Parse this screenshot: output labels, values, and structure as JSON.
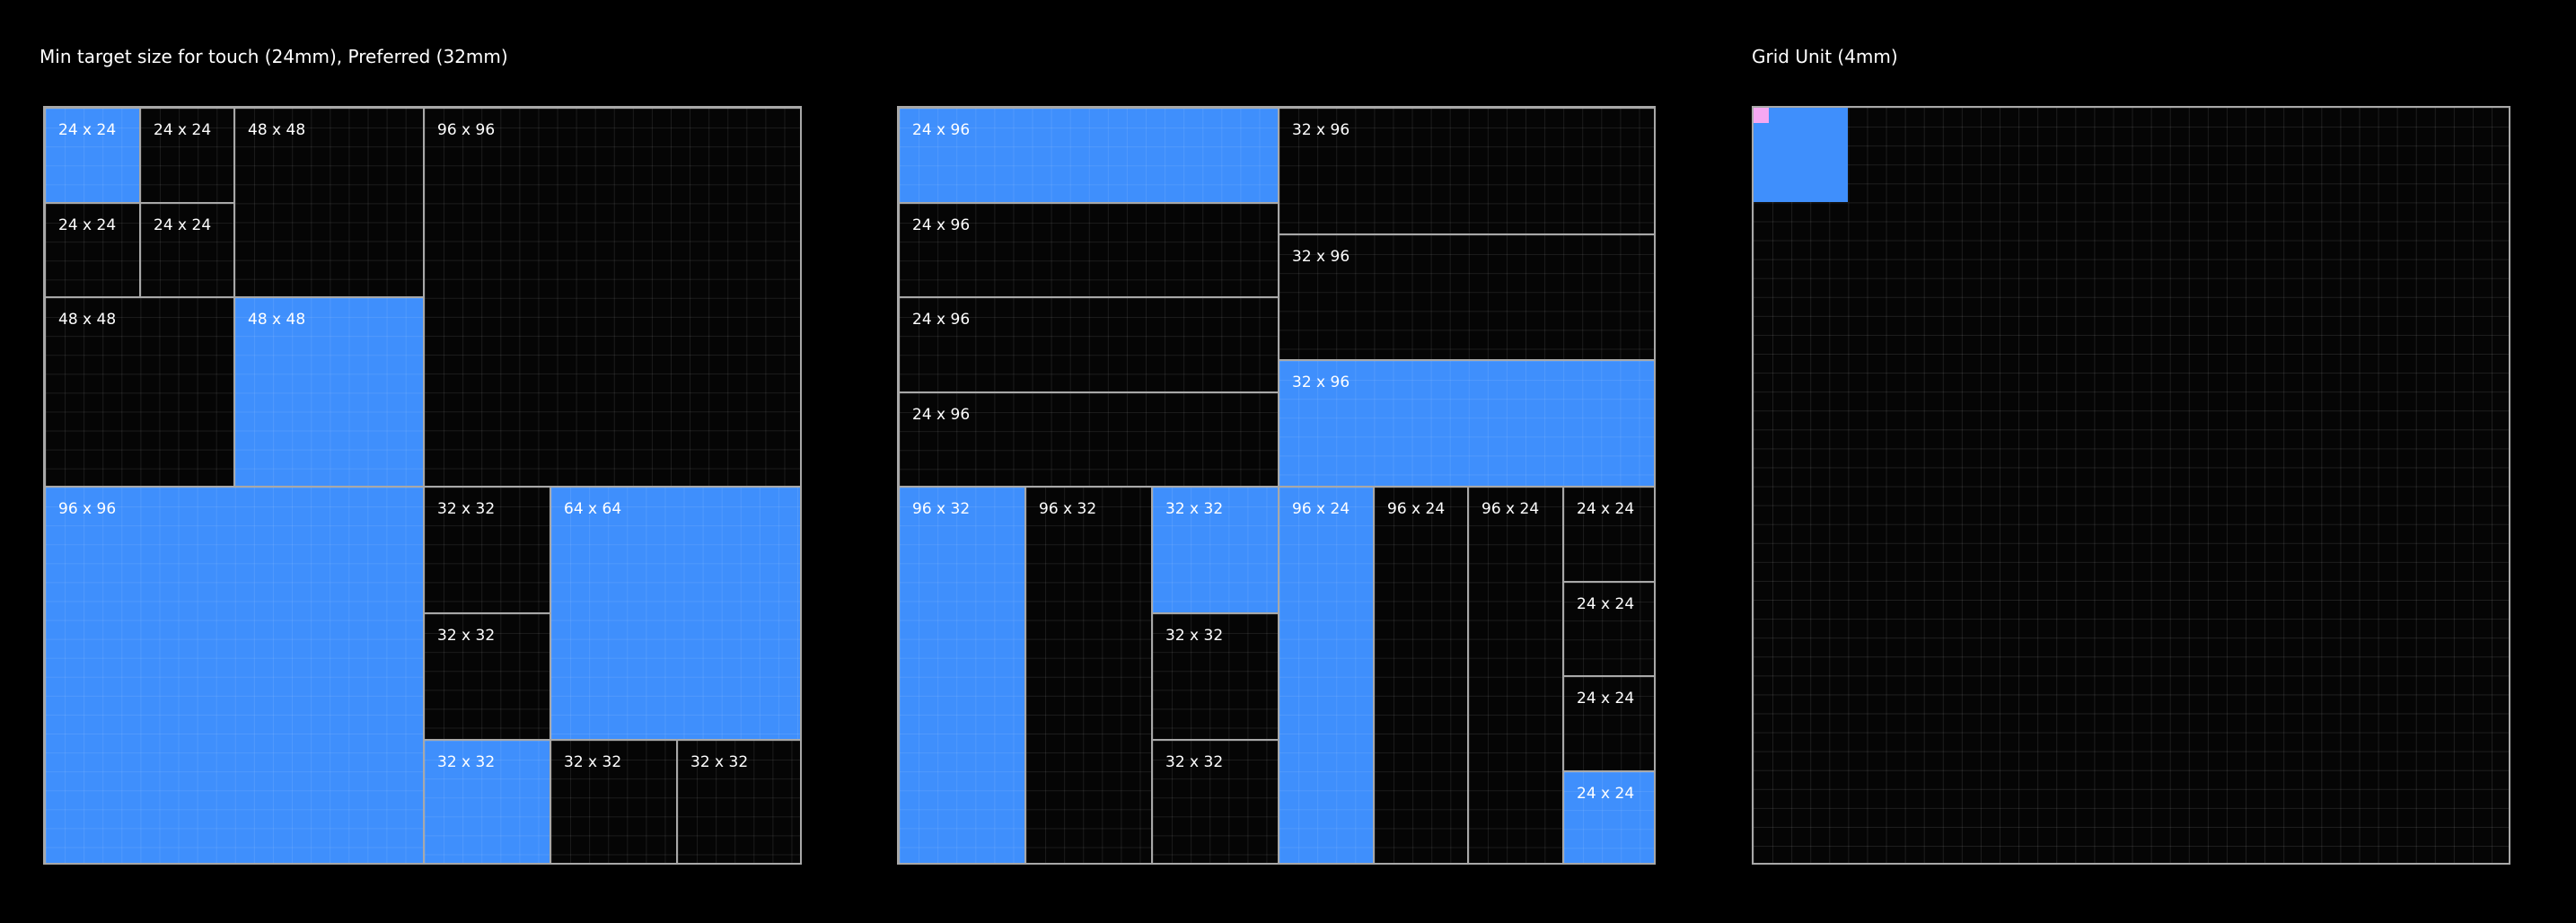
{
  "headings": {
    "left": "Min target size for touch (24mm), Preferred (32mm)",
    "right": "Grid Unit (4mm)"
  },
  "colors": {
    "background": "#000000",
    "blue": "#3f8ffc",
    "pink": "#f5a8f2",
    "border": "#a8a8a8"
  },
  "panel1": {
    "cells": [
      {
        "label": "24 x 24",
        "fill": "blue"
      },
      {
        "label": "24 x 24",
        "fill": "dark"
      },
      {
        "label": "48 x 48",
        "fill": "dark"
      },
      {
        "label": "96 x 96",
        "fill": "dark"
      },
      {
        "label": "24 x 24",
        "fill": "dark"
      },
      {
        "label": "24 x 24",
        "fill": "dark"
      },
      {
        "label": "48 x 48",
        "fill": "dark"
      },
      {
        "label": "48 x 48",
        "fill": "blue"
      },
      {
        "label": "96 x 96",
        "fill": "blue"
      },
      {
        "label": "32 x 32",
        "fill": "dark"
      },
      {
        "label": "64 x 64",
        "fill": "blue"
      },
      {
        "label": "32 x 32",
        "fill": "dark"
      },
      {
        "label": "32 x 32",
        "fill": "blue"
      },
      {
        "label": "32 x 32",
        "fill": "dark"
      },
      {
        "label": "32 x 32",
        "fill": "dark"
      }
    ]
  },
  "panel2": {
    "cells": [
      {
        "label": "24 x 96",
        "fill": "blue"
      },
      {
        "label": "24 x 96",
        "fill": "dark"
      },
      {
        "label": "24 x 96",
        "fill": "dark"
      },
      {
        "label": "24 x 96",
        "fill": "dark"
      },
      {
        "label": "32 x 96",
        "fill": "dark"
      },
      {
        "label": "32 x 96",
        "fill": "dark"
      },
      {
        "label": "32 x 96",
        "fill": "blue"
      },
      {
        "label": "96 x 32",
        "fill": "blue"
      },
      {
        "label": "96 x 32",
        "fill": "dark"
      },
      {
        "label": "32 x 32",
        "fill": "blue"
      },
      {
        "label": "32 x 32",
        "fill": "dark"
      },
      {
        "label": "32 x 32",
        "fill": "dark"
      },
      {
        "label": "96 x 24",
        "fill": "blue"
      },
      {
        "label": "96 x 24",
        "fill": "dark"
      },
      {
        "label": "96 x 24",
        "fill": "dark"
      },
      {
        "label": "24 x 24",
        "fill": "dark"
      },
      {
        "label": "24 x 24",
        "fill": "dark"
      },
      {
        "label": "24 x 24",
        "fill": "dark"
      },
      {
        "label": "24 x 24",
        "fill": "blue"
      }
    ]
  }
}
